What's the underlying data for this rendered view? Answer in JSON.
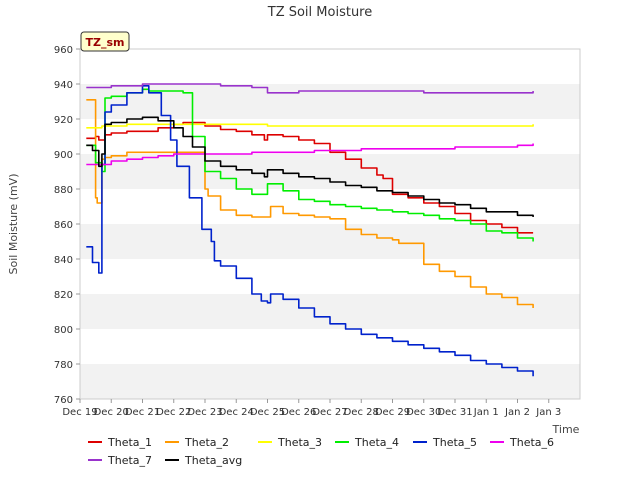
{
  "chart_data": {
    "type": "line",
    "title": "TZ Soil Moisture",
    "xlabel": "Time",
    "ylabel": "Soil Moisture (mV)",
    "badge": "TZ_sm",
    "xlim": [
      0,
      16
    ],
    "ylim": [
      760,
      960
    ],
    "yticks": [
      760,
      780,
      800,
      820,
      840,
      860,
      880,
      900,
      920,
      940,
      960
    ],
    "xticks": [
      {
        "v": 0,
        "label": "Dec 19"
      },
      {
        "v": 1,
        "label": "Dec 20"
      },
      {
        "v": 2,
        "label": "Dec 21"
      },
      {
        "v": 3,
        "label": "Dec 22"
      },
      {
        "v": 4,
        "label": "Dec 23"
      },
      {
        "v": 5,
        "label": "Dec 24"
      },
      {
        "v": 6,
        "label": "Dec 25"
      },
      {
        "v": 7,
        "label": "Dec 26"
      },
      {
        "v": 8,
        "label": "Dec 27"
      },
      {
        "v": 9,
        "label": "Dec 28"
      },
      {
        "v": 10,
        "label": "Dec 29"
      },
      {
        "v": 11,
        "label": "Dec 30"
      },
      {
        "v": 12,
        "label": "Dec 31"
      },
      {
        "v": 13,
        "label": "Jan 1"
      },
      {
        "v": 14,
        "label": "Jan 2"
      },
      {
        "v": 15,
        "label": "Jan 3"
      }
    ],
    "series": [
      {
        "name": "Theta_1",
        "color": "#dd0000",
        "x": [
          0.2,
          0.5,
          0.6,
          0.8,
          1.0,
          1.5,
          2.0,
          2.5,
          3.0,
          3.3,
          3.6,
          4.0,
          4.5,
          5.0,
          5.5,
          5.9,
          6.0,
          6.5,
          7.0,
          7.5,
          8.0,
          8.5,
          9.0,
          9.5,
          9.7,
          10.0,
          10.5,
          11.0,
          11.5,
          12.0,
          12.5,
          13.0,
          13.5,
          14.0,
          14.5
        ],
        "y": [
          909,
          910,
          908,
          911,
          912,
          913,
          913,
          915,
          917,
          918,
          918,
          916,
          914,
          913,
          911,
          908,
          911,
          910,
          908,
          906,
          901,
          897,
          892,
          888,
          886,
          877,
          875,
          872,
          870,
          866,
          862,
          860,
          858,
          855,
          855
        ]
      },
      {
        "name": "Theta_2",
        "color": "#ff9900",
        "x": [
          0.2,
          0.4,
          0.5,
          0.55,
          0.7,
          0.8,
          1.0,
          1.5,
          2.0,
          2.5,
          3.0,
          3.5,
          3.9,
          4.0,
          4.1,
          4.5,
          5.0,
          5.5,
          6.0,
          6.1,
          6.5,
          7.0,
          7.5,
          8.0,
          8.5,
          9.0,
          9.5,
          10.0,
          10.2,
          10.5,
          11.0,
          11.5,
          12.0,
          12.5,
          13.0,
          13.5,
          14.0,
          14.5
        ],
        "y": [
          931,
          931,
          875,
          872,
          897,
          898,
          899,
          901,
          901,
          901,
          901,
          901,
          901,
          880,
          876,
          868,
          865,
          864,
          864,
          870,
          866,
          865,
          864,
          863,
          857,
          854,
          852,
          851,
          849,
          849,
          837,
          833,
          830,
          824,
          820,
          818,
          814,
          812
        ]
      },
      {
        "name": "Theta_3",
        "color": "#ffff00",
        "x": [
          0.2,
          0.7,
          1.0,
          1.5,
          2.0,
          2.5,
          3.0,
          3.5,
          4.0,
          5.0,
          6.0,
          7.0,
          8.0,
          9.0,
          10.0,
          11.0,
          12.0,
          13.0,
          14.0,
          14.5
        ],
        "y": [
          915,
          916,
          916,
          917,
          917,
          917,
          917,
          917,
          917,
          917,
          916,
          916,
          916,
          916,
          916,
          916,
          916,
          916,
          916,
          917
        ]
      },
      {
        "name": "Theta_4",
        "color": "#00ee00",
        "x": [
          0.2,
          0.5,
          0.7,
          0.8,
          1.0,
          1.5,
          2.0,
          2.2,
          2.5,
          3.0,
          3.3,
          3.6,
          4.0,
          4.5,
          5.0,
          5.5,
          5.9,
          6.0,
          6.5,
          7.0,
          7.5,
          8.0,
          8.5,
          9.0,
          9.5,
          10.0,
          10.5,
          11.0,
          11.5,
          12.0,
          12.5,
          13.0,
          13.5,
          14.0,
          14.5
        ],
        "y": [
          905,
          895,
          890,
          932,
          933,
          935,
          937,
          936,
          936,
          936,
          935,
          910,
          890,
          886,
          880,
          877,
          877,
          883,
          879,
          874,
          873,
          871,
          870,
          869,
          868,
          867,
          866,
          865,
          863,
          862,
          860,
          856,
          855,
          852,
          850
        ]
      },
      {
        "name": "Theta_5",
        "color": "#0022cc",
        "x": [
          0.2,
          0.4,
          0.6,
          0.7,
          0.8,
          1.0,
          1.5,
          2.0,
          2.2,
          2.6,
          2.9,
          3.1,
          3.5,
          3.9,
          4.2,
          4.3,
          4.5,
          5.0,
          5.5,
          5.8,
          6.0,
          6.1,
          6.5,
          7.0,
          7.5,
          8.0,
          8.5,
          9.0,
          9.5,
          10.0,
          10.5,
          11.0,
          11.5,
          12.0,
          12.5,
          13.0,
          13.5,
          14.0,
          14.5
        ],
        "y": [
          847,
          838,
          832,
          894,
          924,
          928,
          935,
          939,
          935,
          922,
          908,
          893,
          875,
          857,
          850,
          839,
          836,
          829,
          820,
          816,
          815,
          820,
          817,
          812,
          807,
          803,
          800,
          797,
          795,
          793,
          791,
          789,
          787,
          785,
          782,
          780,
          778,
          776,
          773
        ]
      },
      {
        "name": "Theta_6",
        "color": "#ee00ee",
        "x": [
          0.2,
          0.6,
          1.0,
          1.5,
          2.0,
          2.5,
          3.0,
          3.5,
          4.0,
          4.5,
          5.0,
          5.5,
          6.0,
          6.5,
          7.0,
          7.5,
          8.0,
          8.5,
          9.0,
          9.5,
          10.0,
          10.5,
          11.0,
          11.5,
          12.0,
          12.5,
          13.0,
          13.5,
          14.0,
          14.5
        ],
        "y": [
          894,
          894,
          896,
          897,
          898,
          899,
          900,
          900,
          900,
          900,
          900,
          901,
          901,
          901,
          901,
          902,
          902,
          902,
          903,
          903,
          903,
          903,
          903,
          903,
          904,
          904,
          904,
          904,
          905,
          906
        ]
      },
      {
        "name": "Theta_7",
        "color": "#9933cc",
        "x": [
          0.2,
          0.7,
          1.0,
          1.5,
          2.0,
          2.5,
          3.0,
          3.5,
          4.0,
          4.5,
          5.0,
          5.5,
          6.0,
          6.5,
          7.0,
          8.0,
          9.0,
          10.0,
          11.0,
          12.0,
          13.0,
          14.0,
          14.5
        ],
        "y": [
          938,
          938,
          939,
          939,
          940,
          940,
          940,
          940,
          940,
          939,
          939,
          938,
          935,
          935,
          936,
          936,
          936,
          936,
          935,
          935,
          935,
          935,
          936
        ]
      },
      {
        "name": "Theta_avg",
        "color": "#000000",
        "x": [
          0.2,
          0.4,
          0.6,
          0.7,
          0.8,
          1.0,
          1.5,
          2.0,
          2.5,
          3.0,
          3.3,
          3.6,
          4.0,
          4.5,
          5.0,
          5.5,
          5.9,
          6.0,
          6.5,
          7.0,
          7.5,
          8.0,
          8.5,
          9.0,
          9.5,
          10.0,
          10.5,
          11.0,
          11.5,
          12.0,
          12.5,
          13.0,
          13.5,
          14.0,
          14.5
        ],
        "y": [
          905,
          902,
          893,
          900,
          917,
          918,
          920,
          921,
          919,
          915,
          910,
          904,
          896,
          893,
          891,
          889,
          887,
          891,
          889,
          887,
          886,
          884,
          882,
          881,
          879,
          878,
          876,
          874,
          872,
          871,
          869,
          867,
          867,
          865,
          864
        ]
      }
    ]
  }
}
